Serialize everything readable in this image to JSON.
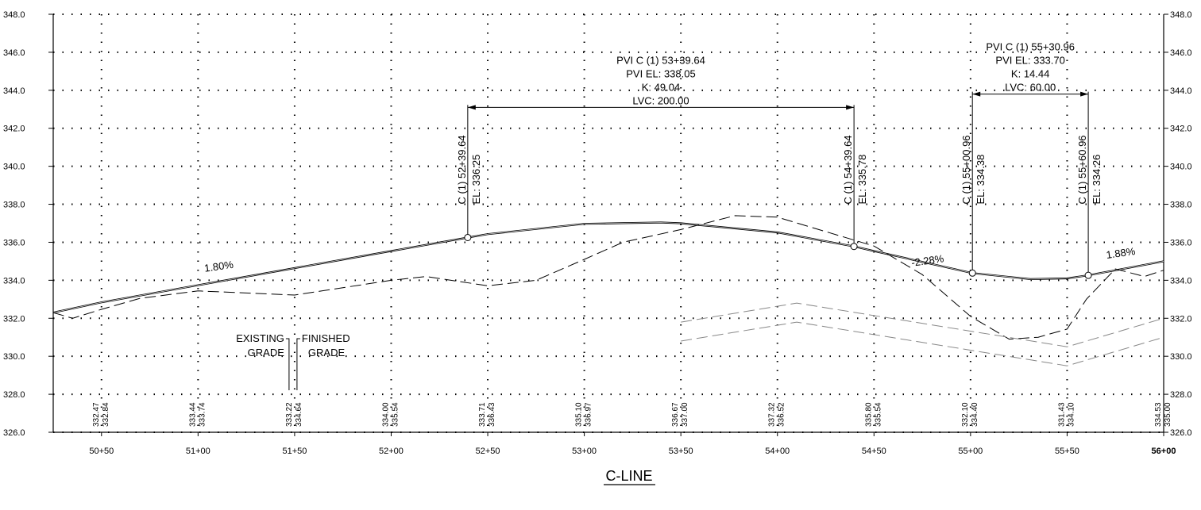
{
  "chart_data": {
    "type": "line",
    "title": "C-LINE",
    "y_axis": {
      "min": 326.0,
      "max": 348.0,
      "step": 2.0,
      "tick_labels": [
        "326.0",
        "328.0",
        "330.0",
        "332.0",
        "334.0",
        "336.0",
        "338.0",
        "340.0",
        "342.0",
        "344.0",
        "346.0",
        "348.0"
      ]
    },
    "x_axis": {
      "unit": "station ft",
      "min": 5025,
      "max": 5600,
      "ticks": [
        {
          "sta": 5050,
          "label": "50+50"
        },
        {
          "sta": 5100,
          "label": "51+00"
        },
        {
          "sta": 5150,
          "label": "51+50"
        },
        {
          "sta": 5200,
          "label": "52+00"
        },
        {
          "sta": 5250,
          "label": "52+50"
        },
        {
          "sta": 5300,
          "label": "53+00"
        },
        {
          "sta": 5350,
          "label": "53+50"
        },
        {
          "sta": 5400,
          "label": "54+00"
        },
        {
          "sta": 5450,
          "label": "54+50"
        },
        {
          "sta": 5500,
          "label": "55+00"
        },
        {
          "sta": 5550,
          "label": "55+50"
        },
        {
          "sta": 5600,
          "label": "56+00"
        }
      ]
    },
    "grid": true,
    "series": [
      {
        "name": "FINISHED GRADE",
        "style": "solid",
        "points": [
          [
            5025,
            332.3
          ],
          [
            5050,
            332.84
          ],
          [
            5100,
            333.74
          ],
          [
            5150,
            334.64
          ],
          [
            5200,
            335.54
          ],
          [
            5239.64,
            336.25
          ],
          [
            5250,
            336.43
          ],
          [
            5300,
            336.97
          ],
          [
            5339.64,
            337.04
          ],
          [
            5350,
            337.0
          ],
          [
            5400,
            336.52
          ],
          [
            5439.64,
            335.78
          ],
          [
            5450,
            335.54
          ],
          [
            5500.96,
            334.38
          ],
          [
            5530.96,
            334.06
          ],
          [
            5550,
            334.1
          ],
          [
            5560.96,
            334.26
          ],
          [
            5600,
            335.0
          ]
        ]
      },
      {
        "name": "EXISTING GRADE",
        "style": "dashed",
        "points": [
          [
            5025,
            332.3
          ],
          [
            5035,
            332.0
          ],
          [
            5050,
            332.47
          ],
          [
            5070,
            333.05
          ],
          [
            5100,
            333.44
          ],
          [
            5150,
            333.22
          ],
          [
            5200,
            334.0
          ],
          [
            5218,
            334.2
          ],
          [
            5250,
            333.71
          ],
          [
            5275,
            334.0
          ],
          [
            5300,
            335.1
          ],
          [
            5320,
            336.0
          ],
          [
            5350,
            336.67
          ],
          [
            5378,
            337.4
          ],
          [
            5400,
            337.32
          ],
          [
            5450,
            335.8
          ],
          [
            5475,
            334.3
          ],
          [
            5500,
            332.1
          ],
          [
            5520,
            330.9
          ],
          [
            5535,
            331.0
          ],
          [
            5550,
            331.43
          ],
          [
            5560,
            333.0
          ],
          [
            5575,
            334.6
          ],
          [
            5590,
            334.2
          ],
          [
            5600,
            334.53
          ]
        ]
      },
      {
        "name": "",
        "style": "dashed-gray",
        "points": [
          [
            5350,
            331.8
          ],
          [
            5410,
            332.8
          ],
          [
            5550,
            330.5
          ],
          [
            5600,
            332.0
          ]
        ]
      },
      {
        "name": "",
        "style": "dashed-gray",
        "points": [
          [
            5350,
            330.8
          ],
          [
            5410,
            331.8
          ],
          [
            5550,
            329.5
          ],
          [
            5600,
            331.0
          ]
        ]
      }
    ],
    "grade_labels": [
      {
        "text": "1.80%",
        "sta": 5111,
        "elev": 334.55
      },
      {
        "text": "-2.28%",
        "sta": 5478,
        "elev": 334.85
      },
      {
        "text": "1.88%",
        "sta": 5578,
        "elev": 335.25
      }
    ],
    "vertical_curves": [
      {
        "pvc_sta": 5239.64,
        "pvt_sta": 5439.64,
        "pvc_elev": 336.25,
        "pvt_elev": 335.78,
        "dim_elev": 343.1,
        "pvc_label_sta": "C (1) 52+39.64",
        "pvc_label_el": "EL: 336.25",
        "pvt_label_sta": "C (1) 54+39.64",
        "pvt_label_el": "EL: 335.78",
        "pvi_text": [
          "PVI C (1) 53+39.64",
          "PVI EL: 338.05",
          "K: 49.04",
          "LVC: 200.00"
        ]
      },
      {
        "pvc_sta": 5500.96,
        "pvt_sta": 5560.96,
        "pvc_elev": 334.38,
        "pvt_elev": 334.26,
        "dim_elev": 343.8,
        "pvc_label_sta": "C (1) 55+00.96",
        "pvc_label_el": "EL: 334.38",
        "pvt_label_sta": "C (1) 55+60.96",
        "pvt_label_el": "EL: 334.26",
        "pvi_text": [
          "PVI C (1) 55+30.96",
          "PVI EL: 333.70",
          "K: 14.44",
          "LVC: 60.00"
        ]
      }
    ],
    "elevation_table": [
      {
        "sta": 5050,
        "existing": "332.47",
        "finished": "332.84"
      },
      {
        "sta": 5100,
        "existing": "333.44",
        "finished": "333.74"
      },
      {
        "sta": 5150,
        "existing": "333.22",
        "finished": "334.64"
      },
      {
        "sta": 5200,
        "existing": "334.00",
        "finished": "335.54"
      },
      {
        "sta": 5250,
        "existing": "333.71",
        "finished": "336.43"
      },
      {
        "sta": 5300,
        "existing": "335.10",
        "finished": "336.97"
      },
      {
        "sta": 5350,
        "existing": "336.67",
        "finished": "337.00"
      },
      {
        "sta": 5400,
        "existing": "337.32",
        "finished": "336.52"
      },
      {
        "sta": 5450,
        "existing": "335.80",
        "finished": "335.54"
      },
      {
        "sta": 5500,
        "existing": "332.10",
        "finished": "334.40"
      },
      {
        "sta": 5550,
        "existing": "331.43",
        "finished": "334.10"
      },
      {
        "sta": 5600,
        "existing": "334.53",
        "finished": "335.00"
      }
    ],
    "legend_callouts": [
      {
        "lines": [
          "EXISTING",
          "GRADE"
        ],
        "sta": 5150
      },
      {
        "lines": [
          "FINISHED",
          "GRADE"
        ],
        "sta": 5150
      }
    ]
  }
}
